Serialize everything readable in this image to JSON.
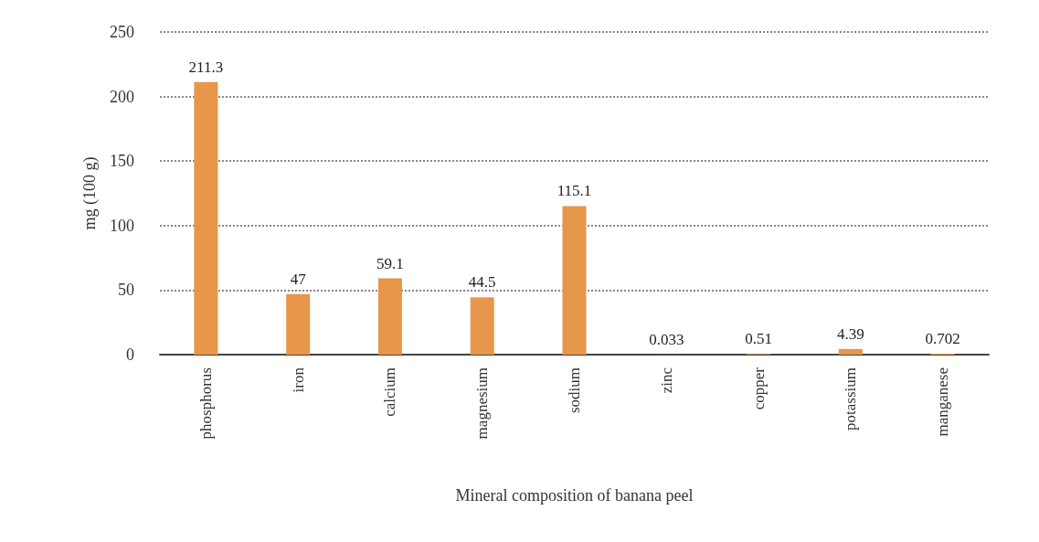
{
  "chart_data": {
    "type": "bar",
    "xlabel": "Mineral composition of banana peel",
    "ylabel": "mg (100 g)",
    "categories": [
      "phosphorus",
      "iron",
      "calcium",
      "magnesium",
      "sodium",
      "zinc",
      "copper",
      "potassium",
      "manganese"
    ],
    "values": [
      211.3,
      47,
      59.1,
      44.5,
      115.1,
      0.033,
      0.51,
      4.39,
      0.702
    ],
    "color": "#e8964a",
    "ylim": [
      0,
      250
    ],
    "yticks": [
      0,
      50,
      100,
      150,
      200,
      250
    ],
    "grid": "y",
    "data_labels": true
  }
}
